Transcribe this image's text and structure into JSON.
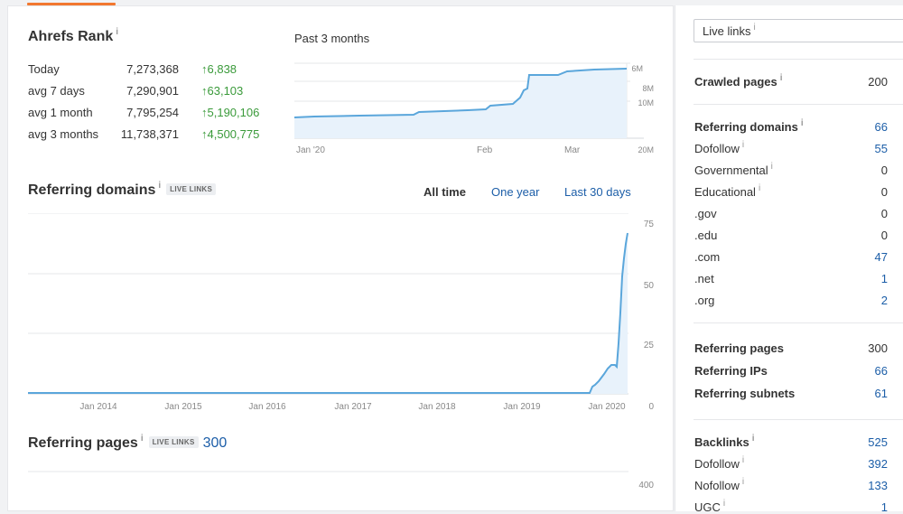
{
  "rank": {
    "title": "Ahrefs Rank",
    "info": "i",
    "rows": [
      {
        "label": "Today",
        "value": "7,273,368",
        "change": "6,838"
      },
      {
        "label": "avg 7 days",
        "value": "7,290,901",
        "change": "63,103"
      },
      {
        "label": "avg 1 month",
        "value": "7,795,254",
        "change": "5,190,106"
      },
      {
        "label": "avg 3 months",
        "value": "11,738,371",
        "change": "4,500,775"
      }
    ],
    "arrow": "↑"
  },
  "rank_chart": {
    "title": "Past 3 months",
    "y_ticks": [
      "6M",
      "8M",
      "10M",
      "20M"
    ],
    "x_ticks": [
      "Jan '20",
      "Feb",
      "Mar"
    ]
  },
  "referring_domains": {
    "title": "Referring domains",
    "info": "i",
    "badge": "LIVE LINKS",
    "ranges": [
      "All time",
      "One year",
      "Last 30 days"
    ],
    "y_ticks": [
      "75",
      "50",
      "25",
      "0"
    ],
    "x_ticks": [
      "Jan 2014",
      "Jan 2015",
      "Jan 2016",
      "Jan 2017",
      "Jan 2018",
      "Jan 2019",
      "Jan 2020"
    ]
  },
  "referring_pages": {
    "title": "Referring pages",
    "info": "i",
    "badge": "LIVE LINKS",
    "count": "300",
    "y_tick": "400"
  },
  "sidebar": {
    "select_value": "Live links",
    "select_info": "i",
    "crawled": {
      "label": "Crawled pages",
      "info": "i",
      "value": "200"
    },
    "domains": [
      {
        "label": "Referring domains",
        "info": "i",
        "value": "66",
        "bold": true,
        "blue": true
      },
      {
        "label": "Dofollow",
        "info": "i",
        "value": "55",
        "bold": false,
        "blue": true
      },
      {
        "label": "Governmental",
        "info": "i",
        "value": "0",
        "bold": false,
        "blue": false
      },
      {
        "label": "Educational",
        "info": "i",
        "value": "0",
        "bold": false,
        "blue": false
      },
      {
        "label": ".gov",
        "info": "",
        "value": "0",
        "bold": false,
        "blue": false
      },
      {
        "label": ".edu",
        "info": "",
        "value": "0",
        "bold": false,
        "blue": false
      },
      {
        "label": ".com",
        "info": "",
        "value": "47",
        "bold": false,
        "blue": true
      },
      {
        "label": ".net",
        "info": "",
        "value": "1",
        "bold": false,
        "blue": true
      },
      {
        "label": ".org",
        "info": "",
        "value": "2",
        "bold": false,
        "blue": true
      }
    ],
    "refs": [
      {
        "label": "Referring pages",
        "value": "300",
        "blue": false
      },
      {
        "label": "Referring IPs",
        "value": "66",
        "blue": true
      },
      {
        "label": "Referring subnets",
        "value": "61",
        "blue": true
      }
    ],
    "backlinks": [
      {
        "label": "Backlinks",
        "info": "i",
        "value": "525",
        "bold": true
      },
      {
        "label": "Dofollow",
        "info": "i",
        "value": "392",
        "bold": false
      },
      {
        "label": "Nofollow",
        "info": "i",
        "value": "133",
        "bold": false
      },
      {
        "label": "UGC",
        "info": "i",
        "value": "1",
        "bold": false
      }
    ]
  }
}
